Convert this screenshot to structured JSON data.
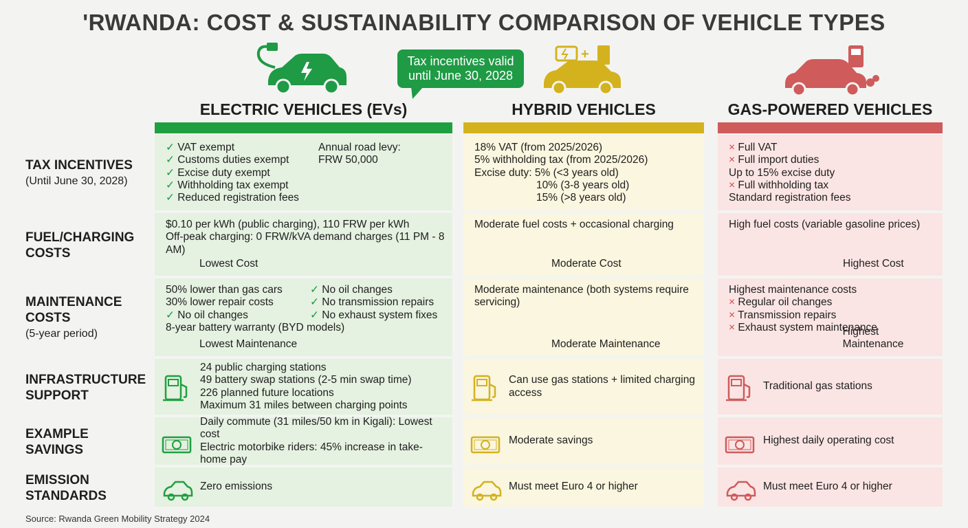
{
  "header": {
    "title": "'RWANDA: COST & SUSTAINABILITY COMPARISON OF VEHICLE TYPES",
    "callout": "Tax incentives valid until June 30, 2028"
  },
  "columns": [
    {
      "title": "ELECTRIC VEHICLES (EVs)"
    },
    {
      "title": "HYBRID VEHICLES"
    },
    {
      "title": "GAS-POWERED VEHICLES"
    }
  ],
  "rows": [
    {
      "label": "TAX INCENTIVES",
      "sublabel": "(Until June 30, 2028)",
      "cells": [
        {
          "lines": [
            "✓ VAT exempt",
            "✓ Customs duties exempt",
            "✓ Excise duty exempt",
            "✓ Withholding tax exempt",
            "✓ Reduced registration fees"
          ],
          "side": [
            "Annual road levy:",
            "FRW 50,000"
          ]
        },
        {
          "lines": [
            "18% VAT (from 2025/2026)",
            "5% withholding tax (from 2025/2026)",
            "Excise duty: 5% (<3 years old)",
            "10% (3-8 years old)",
            "15% (>8 years old)"
          ]
        },
        {
          "lines": [
            "× Full VAT",
            "× Full import duties",
            "Up to 15% excise duty",
            "× Full withholding tax",
            "Standard registration fees"
          ]
        }
      ]
    },
    {
      "label": "FUEL/CHARGING COSTS",
      "cells": [
        {
          "lines": [
            "$0.10 per kWh (public charging), 110 FRW per kWh",
            "Off-peak charging: 0 FRW/kVA demand charges (11 PM - 8 AM)"
          ],
          "indicator": "Lowest Cost"
        },
        {
          "lines": [
            "Moderate fuel costs + occasional charging"
          ],
          "indicator": "Moderate Cost"
        },
        {
          "lines": [
            "High fuel costs (variable gasoline prices)"
          ],
          "indicator": "Highest Cost"
        }
      ]
    },
    {
      "label": "MAINTENANCE COSTS",
      "sublabel": "(5-year period)",
      "cells": [
        {
          "lines": [
            "50% lower than gas cars",
            "30% lower repair costs",
            "✓ No oil changes",
            "8-year battery warranty (BYD models)"
          ],
          "side": [
            "✓ No oil changes",
            "✓ No transmission repairs",
            "✓ No exhaust system fixes"
          ],
          "indicator": "Lowest Maintenance"
        },
        {
          "lines": [
            "Moderate maintenance (both systems require servicing)"
          ],
          "indicator": "Moderate Maintenance"
        },
        {
          "lines": [
            "Highest maintenance costs",
            "× Regular oil changes",
            "× Transmission repairs",
            "× Exhaust system maintenance"
          ],
          "indicator": "Highest Maintenance"
        }
      ]
    },
    {
      "label": "INFRASTRUCTURE SUPPORT",
      "cells": [
        {
          "lines": [
            "24 public charging stations",
            "49 battery swap stations (2-5 min swap time)",
            "226 planned future locations",
            "Maximum 31 miles between charging points"
          ]
        },
        {
          "lines": [
            "Can use gas stations + limited charging access"
          ]
        },
        {
          "lines": [
            "Traditional gas stations"
          ]
        }
      ]
    },
    {
      "label": "EXAMPLE SAVINGS",
      "cells": [
        {
          "lines": [
            "Daily commute (31 miles/50 km in Kigali): Lowest cost",
            "Electric motorbike riders: 45% increase in take-home pay"
          ]
        },
        {
          "lines": [
            "Moderate savings"
          ]
        },
        {
          "lines": [
            "Highest daily operating cost"
          ]
        }
      ]
    },
    {
      "label": "EMISSION STANDARDS",
      "cells": [
        {
          "lines": [
            "Zero emissions"
          ]
        },
        {
          "lines": [
            "Must meet Euro 4 or higher"
          ]
        },
        {
          "lines": [
            "Must meet Euro 4 or higher"
          ]
        }
      ]
    }
  ],
  "source": "Source: Rwanda Green Mobility Strategy 2024"
}
